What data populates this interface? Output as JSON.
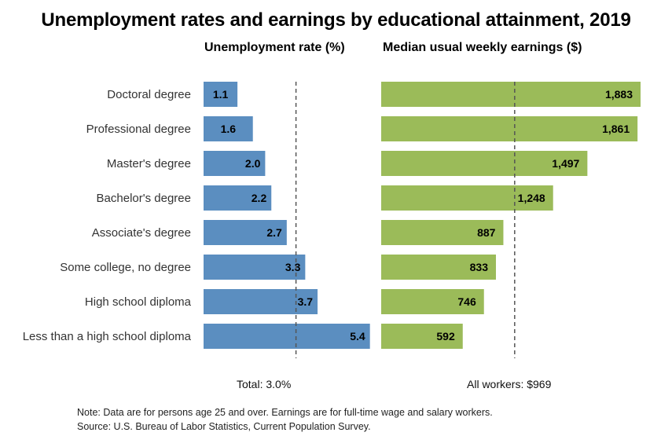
{
  "title": "Unemployment rates and earnings by educational attainment, 2019",
  "left_panel_title": "Unemployment rate (%)",
  "right_panel_title": "Median usual weekly earnings ($)",
  "total_label": "Total: 3.0%",
  "all_workers_label": "All workers: $969",
  "note": "Note: Data are for persons age 25 and over. Earnings are for full-time wage and salary workers.",
  "source": "Source: U.S. Bureau of Labor Statistics, Current Population Survey.",
  "colors": {
    "unemployment_bar": "#5B8EC0",
    "earnings_bar": "#9BBB59",
    "reference_line": "#555555"
  },
  "chart_data": [
    {
      "type": "bar",
      "orientation": "horizontal",
      "title": "Unemployment rate (%)",
      "categories": [
        "Doctoral degree",
        "Professional degree",
        "Master's degree",
        "Bachelor's degree",
        "Associate's degree",
        "Some college, no degree",
        "High school diploma",
        "Less than a high school diploma"
      ],
      "values": [
        1.1,
        1.6,
        2.0,
        2.2,
        2.7,
        3.3,
        3.7,
        5.4
      ],
      "value_labels": [
        "1.1",
        "1.6",
        "2.0",
        "2.2",
        "2.7",
        "3.3",
        "3.7",
        "5.4"
      ],
      "reference_line": 3.0,
      "xlim": [
        0,
        6
      ]
    },
    {
      "type": "bar",
      "orientation": "horizontal",
      "title": "Median usual weekly earnings ($)",
      "categories": [
        "Doctoral degree",
        "Professional degree",
        "Master's degree",
        "Bachelor's degree",
        "Associate's degree",
        "Some college, no degree",
        "High school diploma",
        "Less than a high school diploma"
      ],
      "values": [
        1883,
        1861,
        1497,
        1248,
        887,
        833,
        746,
        592
      ],
      "value_labels": [
        "1,883",
        "1,861",
        "1,497",
        "1,248",
        "887",
        "833",
        "746",
        "592"
      ],
      "reference_line": 969,
      "xlim": [
        0,
        1883
      ]
    }
  ]
}
